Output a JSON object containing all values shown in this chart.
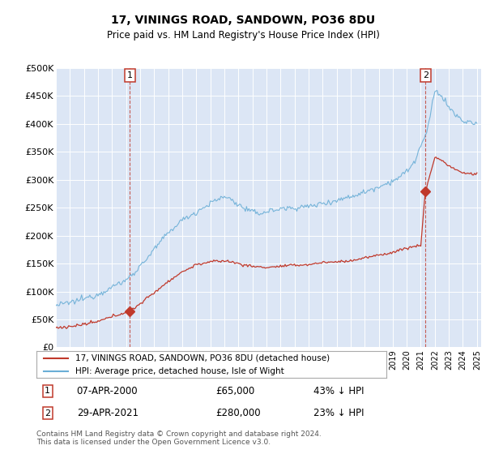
{
  "title1": "17, VININGS ROAD, SANDOWN, PO36 8DU",
  "title2": "Price paid vs. HM Land Registry's House Price Index (HPI)",
  "plot_bg": "#dce6f5",
  "hpi_color": "#6aaed6",
  "price_color": "#c0392b",
  "ylim": [
    0,
    500000
  ],
  "yticks": [
    0,
    50000,
    100000,
    150000,
    200000,
    250000,
    300000,
    350000,
    400000,
    450000,
    500000
  ],
  "sale1_year": 2000.27,
  "sale1_price": 65000,
  "sale2_year": 2021.33,
  "sale2_price": 280000,
  "legend_line1": "17, VININGS ROAD, SANDOWN, PO36 8DU (detached house)",
  "legend_line2": "HPI: Average price, detached house, Isle of Wight",
  "note1_label": "1",
  "note1_date": "07-APR-2000",
  "note1_price": "£65,000",
  "note1_hpi": "43% ↓ HPI",
  "note2_label": "2",
  "note2_date": "29-APR-2021",
  "note2_price": "£280,000",
  "note2_hpi": "23% ↓ HPI",
  "footer": "Contains HM Land Registry data © Crown copyright and database right 2024.\nThis data is licensed under the Open Government Licence v3.0."
}
